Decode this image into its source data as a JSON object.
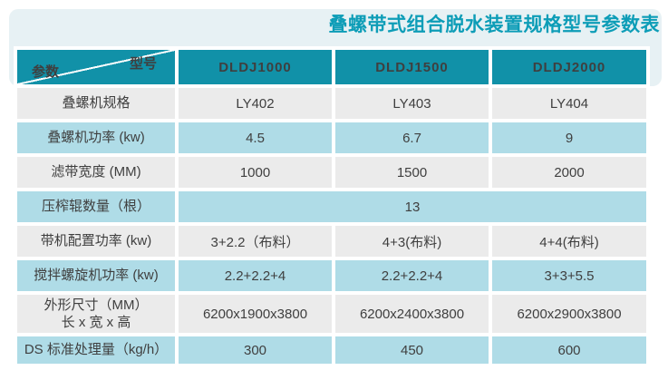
{
  "page_title": "叠螺带式组合脱水装置规格型号参数表",
  "colors": {
    "header_teal": "#1191A8",
    "title_teal": "#0D9DB7",
    "row_blue": "#AFDCE7",
    "row_gray": "#EBEBEB",
    "band_blue": "#E7F1F4",
    "cell_text": "#3F3F3F"
  },
  "table": {
    "corner": {
      "bottom_left": "参数",
      "top_right": "型号"
    },
    "model_columns": [
      "DLDJ1000",
      "DLDJ1500",
      "DLDJ2000"
    ],
    "rows": [
      {
        "label_lines": [
          "叠螺机规格"
        ],
        "values": [
          "LY402",
          "LY403",
          "LY404"
        ],
        "shade": "gray",
        "merged": false
      },
      {
        "label_lines": [
          "叠螺机功率 (kw)"
        ],
        "values": [
          "4.5",
          "6.7",
          "9"
        ],
        "shade": "blue",
        "merged": false
      },
      {
        "label_lines": [
          "滤带宽度 (MM)"
        ],
        "values": [
          "1000",
          "1500",
          "2000"
        ],
        "shade": "gray",
        "merged": false
      },
      {
        "label_lines": [
          "压榨辊数量（根）"
        ],
        "values": [
          "13"
        ],
        "shade": "blue",
        "merged": true
      },
      {
        "label_lines": [
          "带机配置功率 (kw)"
        ],
        "values": [
          "3+2.2（布料）",
          "4+3(布料)",
          "4+4(布料)"
        ],
        "shade": "gray",
        "merged": false
      },
      {
        "label_lines": [
          "搅拌螺旋机功率 (kw)"
        ],
        "values": [
          "2.2+2.2+4",
          "2.2+2.2+4",
          "3+3+5.5"
        ],
        "shade": "blue",
        "merged": false
      },
      {
        "label_lines": [
          "外形尺寸（MM）",
          "长 x 宽 x 高"
        ],
        "values": [
          "6200x1900x3800",
          "6200x2400x3800",
          "6200x2900x3800"
        ],
        "shade": "gray",
        "merged": false
      },
      {
        "label_lines": [
          "DS 标准处理量（kg/h）"
        ],
        "values": [
          "300",
          "450",
          "600"
        ],
        "shade": "blue",
        "merged": false
      }
    ]
  }
}
